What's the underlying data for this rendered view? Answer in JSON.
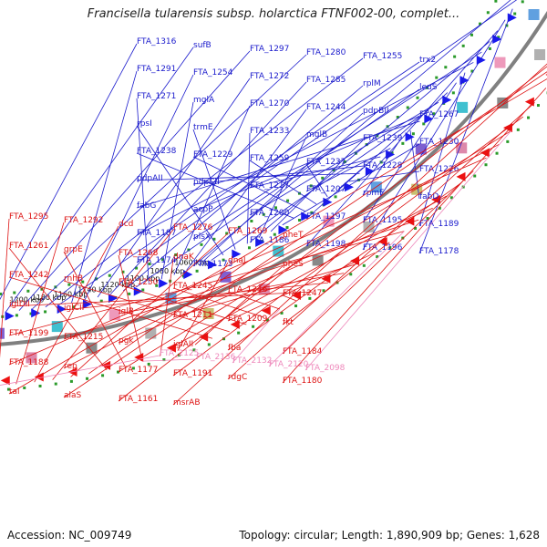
{
  "title": "Francisella tularensis subsp. holarctica FTNF002-00, complet...",
  "footer": {
    "accession": "Accession: NC_009749",
    "stats": "Topology: circular; Length: 1,890,909 bp; Genes: 1,628"
  },
  "colors": {
    "forward_label": "#1a1acc",
    "reverse_label": "#dd1111",
    "rna_label": "#ee88bb",
    "backbone": "#808080",
    "tick_dot": "#2a9a2a"
  },
  "scale_labels": [
    "1200 kbp",
    "1180 kbp",
    "1160 kbp",
    "1140 kbp",
    "1120 kbp",
    "1100 kbp",
    "1080 kbp",
    "1060 kbp"
  ],
  "forward_labels": [
    "FTA_1316",
    "sufB",
    "FTA_1297",
    "FTA_1280",
    "FTA_1255",
    "trx2",
    "FTA_1291",
    "FTA_1254",
    "FTA_1272",
    "FTA_1285",
    "rplM",
    "leuS",
    "FTA_1271",
    "mglA",
    "FTA_1270",
    "FTA_1244",
    "pdpBII",
    "FTA_1267",
    "rpsI",
    "trmE",
    "FTA_1233",
    "mglB",
    "FTA_1239",
    "FTA_1230",
    "FTA_1238",
    "FTA_1229",
    "FTA_1259",
    "FTA_1237",
    "FTA_1228",
    "FTA_1226",
    "pdpAII",
    "pdpCII",
    "FTA_1217",
    "FTA_1207",
    "rpmF",
    "fabD",
    "fabG",
    "acpP",
    "FTA_1200",
    "FTA_1197",
    "FTA_1195",
    "FTA_1189",
    "FTA_1187",
    "plsX",
    "FTA_1186",
    "FTA_1198",
    "FTA_1196",
    "FTA_1178",
    "FTA_1174",
    "FTA_1173"
  ],
  "reverse_labels": [
    "FTA_1295",
    "FTA_1292",
    "dcd",
    "FTA_1276",
    "FTA_1269",
    "pheT",
    "FTA_1261",
    "grpE",
    "FTA_1268",
    "dnaK",
    "dnaJ",
    "pheS",
    "FTA_1242",
    "rnhB",
    "FTA_1250",
    "FTA_1245",
    "FTA_1246",
    "FTA_1247",
    "iglDII",
    "iglCII",
    "iglB",
    "FTA_1211",
    "FTA_1209",
    "fkt",
    "FTA_1199",
    "FTA_1215",
    "pgk",
    "iglAII",
    "fba",
    "FTA_1184",
    "FTA_1188",
    "rep",
    "FTA_1177",
    "FTA_1191",
    "rdgC",
    "FTA_1180",
    "tal",
    "alaS",
    "FTA_1161",
    "msrAB"
  ],
  "rna_labels": [
    "FTA_2125",
    "FTA_2136",
    "FTA_2132",
    "FTA_2120",
    "FTA_2098"
  ]
}
